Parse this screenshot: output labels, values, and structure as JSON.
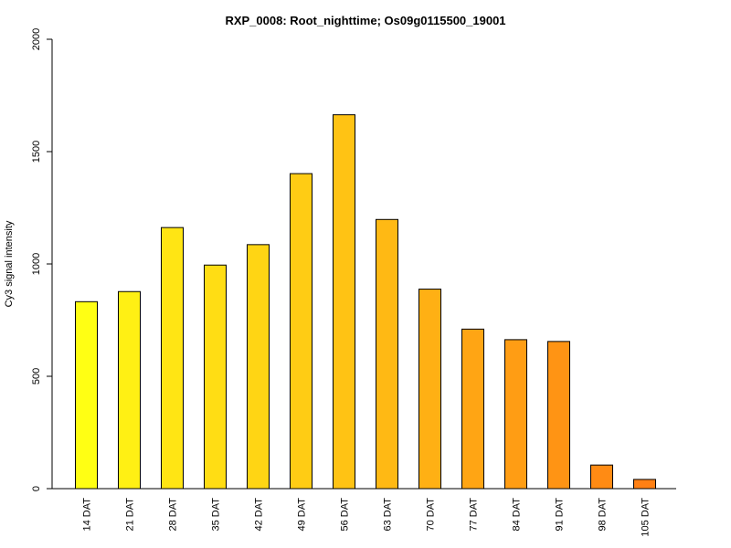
{
  "chart_data": {
    "type": "bar",
    "title": "RXP_0008: Root_nighttime; Os09g0115500_19001",
    "xlabel": "",
    "ylabel": "Cy3 signal intensity",
    "ylim": [
      0,
      2000
    ],
    "yticks": [
      0,
      500,
      1000,
      1500,
      2000
    ],
    "grid": false,
    "legend": "none",
    "categories": [
      "14 DAT",
      "21 DAT",
      "28 DAT",
      "35 DAT",
      "42 DAT",
      "49 DAT",
      "56 DAT",
      "63 DAT",
      "70 DAT",
      "77 DAT",
      "84 DAT",
      "91 DAT",
      "98 DAT",
      "105 DAT"
    ],
    "values": [
      832,
      877,
      1162,
      995,
      1086,
      1402,
      1664,
      1198,
      888,
      710,
      663,
      655,
      105,
      41
    ],
    "colors": [
      "#FFFF14",
      "#FFF014",
      "#FFE514",
      "#FFDD14",
      "#FFD514",
      "#FFCC14",
      "#FFC314",
      "#FFB914",
      "#FFB014",
      "#FFA514",
      "#FF9D14",
      "#FF9414",
      "#FF8B14",
      "#FF8014"
    ]
  }
}
